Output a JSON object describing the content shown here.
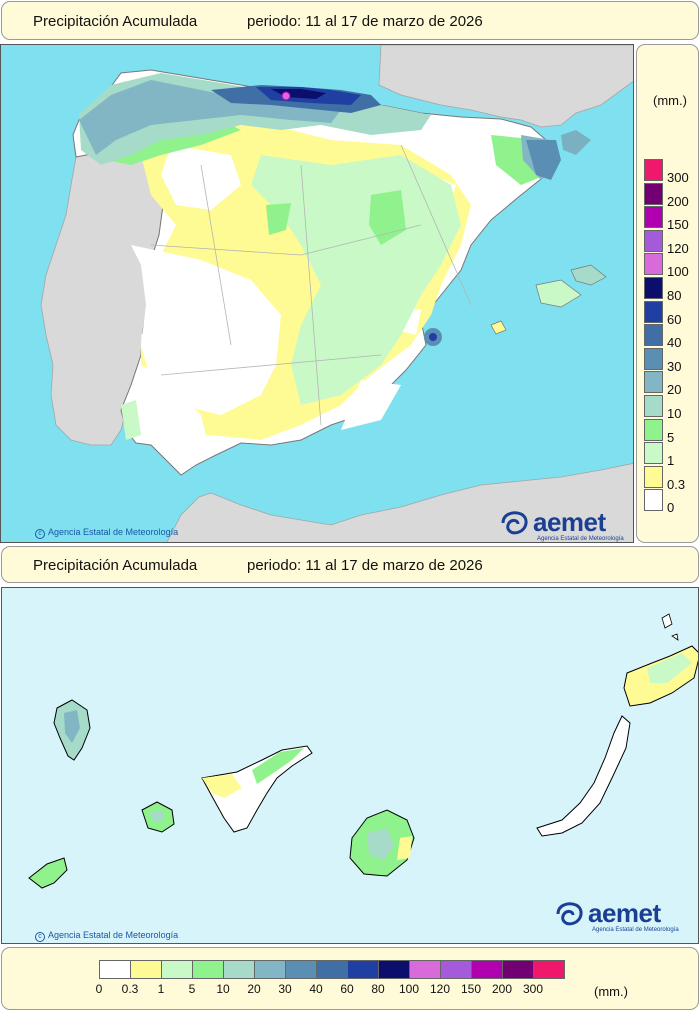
{
  "title_top": {
    "label": "Precipitación Acumulada",
    "period": "periodo: 11 al 17 de marzo de 2026"
  },
  "title_bottom": {
    "label": "Precipitación Acumulada",
    "period": "periodo: 11 al 17 de marzo de 2026"
  },
  "map_peninsula": {
    "copyright": "Agencia Estatal de Meteorología",
    "logo_word": "aemet",
    "logo_sub": "Agencia Estatal de Meteorología"
  },
  "map_canarias": {
    "copyright": "Agencia Estatal de Meteorología",
    "logo_word": "aemet",
    "logo_sub": "Agencia Estatal de Meteorología"
  },
  "legend": {
    "unit": "(mm.)",
    "classes": [
      {
        "label": "0",
        "color": "#ffffff"
      },
      {
        "label": "0.3",
        "color": "#fffb94"
      },
      {
        "label": "1",
        "color": "#c8f9c6"
      },
      {
        "label": "5",
        "color": "#8ff28c"
      },
      {
        "label": "10",
        "color": "#a6dbc9"
      },
      {
        "label": "20",
        "color": "#82b6c4"
      },
      {
        "label": "30",
        "color": "#5a8fb3"
      },
      {
        "label": "40",
        "color": "#3f6fa5"
      },
      {
        "label": "60",
        "color": "#1f3fa3"
      },
      {
        "label": "80",
        "color": "#0b0e6a"
      },
      {
        "label": "100",
        "color": "#d96ad9"
      },
      {
        "label": "120",
        "color": "#a55ad9"
      },
      {
        "label": "150",
        "color": "#b000b0"
      },
      {
        "label": "200",
        "color": "#720072"
      },
      {
        "label": "300",
        "color": "#f0186b"
      }
    ]
  },
  "colors": {
    "sea": "#7fe0ef",
    "sea_canarias": "#d6f4fa",
    "land_outside": "#d9d9d9",
    "border_line": "#b5b5b5",
    "box_bg": "#fffbd9"
  }
}
